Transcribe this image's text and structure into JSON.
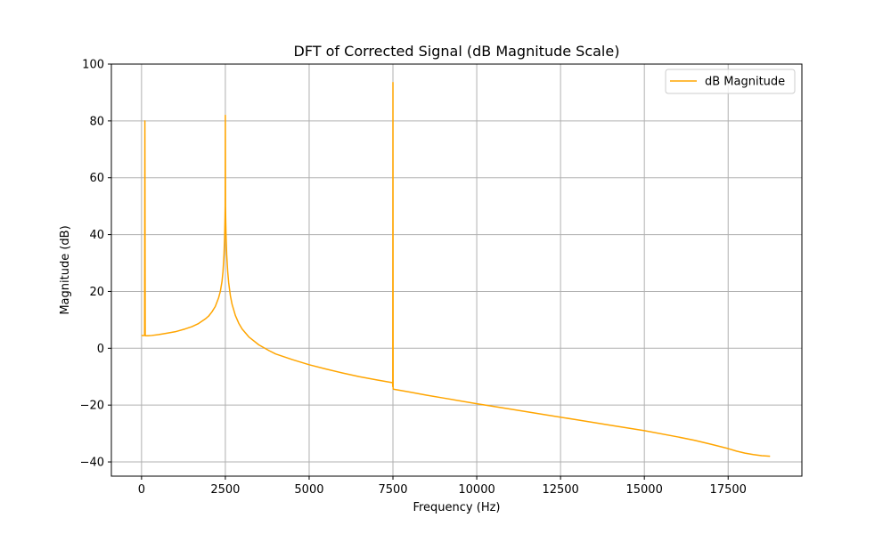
{
  "chart_data": {
    "type": "line",
    "title": "DFT of Corrected Signal (dB Magnitude Scale)",
    "xlabel": "Frequency (Hz)",
    "ylabel": "Magnitude (dB)",
    "xlim": [
      -900,
      19700
    ],
    "ylim": [
      -45,
      100
    ],
    "xticks": [
      0,
      2500,
      5000,
      7500,
      10000,
      12500,
      15000,
      17500
    ],
    "xtick_labels": [
      "0",
      "2500",
      "5000",
      "7500",
      "10000",
      "12500",
      "15000",
      "17500"
    ],
    "yticks": [
      -40,
      -20,
      0,
      20,
      40,
      60,
      80,
      100
    ],
    "ytick_labels": [
      "−40",
      "−20",
      "0",
      "20",
      "40",
      "60",
      "80",
      "100"
    ],
    "grid": true,
    "legend_position": "upper right",
    "series": [
      {
        "name": "dB Magnitude",
        "color": "#ffa500",
        "x": [
          0,
          90,
          100,
          110,
          120,
          150,
          200,
          300,
          500,
          700,
          1000,
          1300,
          1500,
          1700,
          1900,
          2000,
          2100,
          2200,
          2300,
          2350,
          2400,
          2430,
          2460,
          2480,
          2490,
          2495,
          2500,
          2505,
          2510,
          2520,
          2540,
          2570,
          2600,
          2650,
          2700,
          2800,
          2900,
          3000,
          3200,
          3500,
          3800,
          4000,
          4500,
          5000,
          5500,
          6000,
          6500,
          7000,
          7490,
          7495,
          7500,
          7505,
          7510,
          8000,
          8500,
          9000,
          10000,
          11000,
          12000,
          13000,
          14000,
          15000,
          16000,
          16500,
          17000,
          17500,
          17750,
          18000,
          18250,
          18500,
          18750
        ],
        "y": [
          4.5,
          4.5,
          80.0,
          4.5,
          4.4,
          4.4,
          4.4,
          4.5,
          4.8,
          5.2,
          5.8,
          6.8,
          7.6,
          8.7,
          10.3,
          11.3,
          12.8,
          14.7,
          17.8,
          20.0,
          23.5,
          27.0,
          33.0,
          40.0,
          46.0,
          50.0,
          82.0,
          50.0,
          46.0,
          40.0,
          33.0,
          27.0,
          23.0,
          18.5,
          15.5,
          11.5,
          8.8,
          6.8,
          4.0,
          1.2,
          -0.8,
          -2.0,
          -4.0,
          -5.8,
          -7.3,
          -8.7,
          -10.0,
          -11.1,
          -12.1,
          -13.5,
          93.5,
          -14.2,
          -14.4,
          -15.4,
          -16.5,
          -17.5,
          -19.5,
          -21.4,
          -23.3,
          -25.2,
          -27.1,
          -29.0,
          -31.2,
          -32.4,
          -33.8,
          -35.3,
          -36.2,
          -36.9,
          -37.4,
          -37.8,
          -38.0
        ]
      }
    ]
  }
}
